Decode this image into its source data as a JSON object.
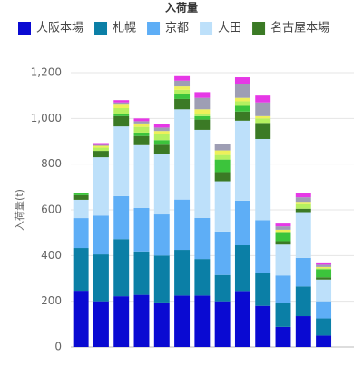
{
  "chart_data": {
    "type": "bar",
    "stacked": true,
    "title": "入荷量",
    "y_label": "入荷量(t)",
    "categories": [
      null,
      null,
      null,
      null,
      null,
      null,
      null,
      null,
      null,
      null,
      null,
      null,
      null,
      null
    ],
    "series": [
      {
        "name": "大阪本場",
        "color": "#0a0ad2",
        "values": [
          246,
          200,
          222,
          228,
          195,
          225,
          225,
          200,
          245,
          180,
          88,
          135,
          50,
          null
        ]
      },
      {
        "name": "札幌",
        "color": "#0b7fa6",
        "values": [
          187,
          205,
          250,
          190,
          205,
          200,
          160,
          115,
          200,
          145,
          105,
          130,
          75,
          null
        ]
      },
      {
        "name": "京都",
        "color": "#5eaef6",
        "values": [
          131,
          170,
          188,
          190,
          180,
          220,
          180,
          190,
          195,
          230,
          120,
          125,
          75,
          null
        ]
      },
      {
        "name": "大田",
        "color": "#bde0fa",
        "values": [
          80,
          255,
          305,
          275,
          265,
          395,
          385,
          220,
          350,
          355,
          135,
          200,
          95,
          null
        ]
      },
      {
        "name": "名古屋本場",
        "color": "#3b7a25",
        "values": [
          20,
          28,
          45,
          40,
          40,
          45,
          45,
          40,
          40,
          70,
          15,
          15,
          10,
          null
        ]
      },
      {
        "name": null,
        "color": "#3cc43c",
        "values": [
          8,
          0,
          10,
          15,
          20,
          20,
          15,
          55,
          25,
          0,
          40,
          0,
          35,
          null
        ]
      },
      {
        "name": null,
        "color": "#b5f060",
        "values": [
          0,
          14,
          25,
          25,
          25,
          20,
          10,
          20,
          20,
          20,
          0,
          20,
          5,
          null
        ]
      },
      {
        "name": null,
        "color": "#eef05a",
        "values": [
          0,
          8,
          15,
          15,
          15,
          15,
          20,
          20,
          15,
          10,
          10,
          10,
          5,
          null
        ]
      },
      {
        "name": null,
        "color": "#9e9eb4",
        "values": [
          0,
          4,
          10,
          10,
          15,
          25,
          50,
          30,
          60,
          60,
          15,
          20,
          10,
          null
        ]
      },
      {
        "name": null,
        "color": "#e638e6",
        "values": [
          0,
          8,
          10,
          12,
          15,
          20,
          25,
          0,
          30,
          30,
          12,
          20,
          10,
          null
        ]
      }
    ],
    "ylim": [
      0,
      1200
    ],
    "yticks": [
      0,
      200,
      400,
      600,
      800,
      {
        "value": 1000,
        "label": "1,000"
      },
      {
        "value": 1200,
        "label": "1,200"
      }
    ],
    "grid": true
  }
}
